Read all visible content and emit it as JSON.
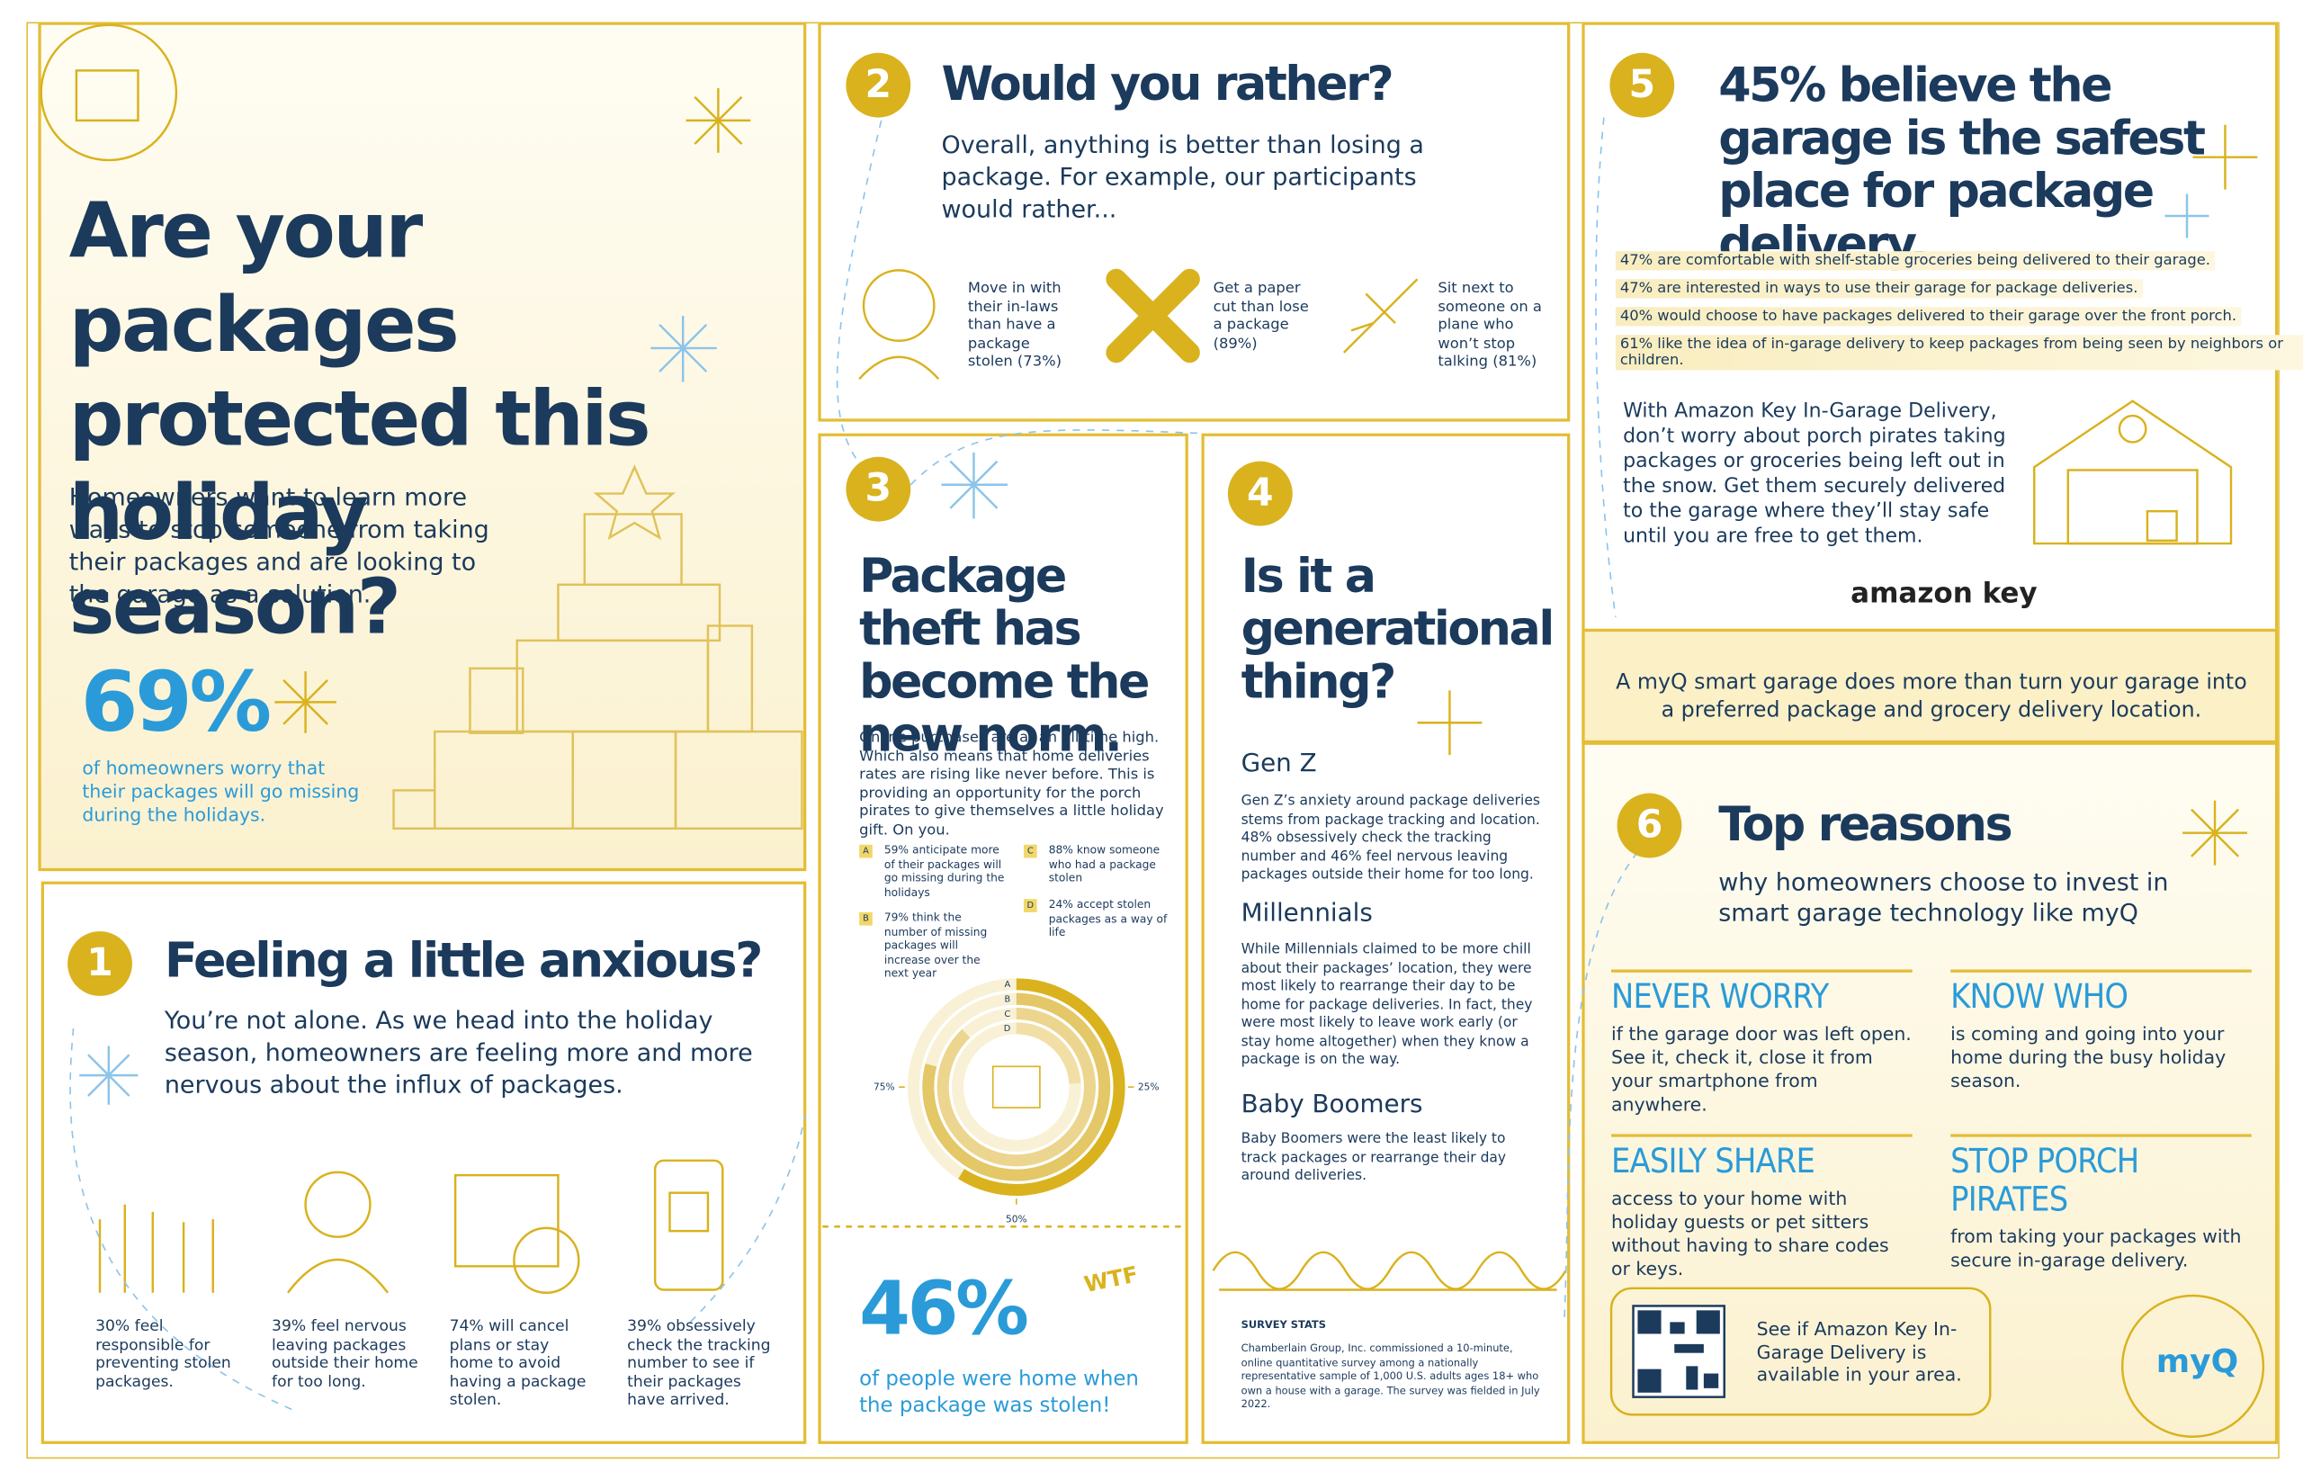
{
  "hero": {
    "title": "Are your packages protected this holiday season?",
    "body": "Homeowners want to learn more ways to stop someone from taking their packages and are looking to the garage as a solution.",
    "stat": "69%",
    "stat_text": "of homeowners worry that their packages will go missing during the holidays."
  },
  "section1": {
    "number": "1",
    "title": "Feeling a little anxious?",
    "body": "You’re not alone. As we head into the holiday season, homeowners are feeling more and more nervous about the influx of packages.",
    "items": [
      "30% feel responsible for preventing stolen packages.",
      "39% feel nervous leaving packages outside their home for too long.",
      "74% will cancel plans or stay home to avoid having a package stolen.",
      "39% obsessively check the tracking number to see if their packages have arrived."
    ]
  },
  "section2": {
    "number": "2",
    "title": "Would you rather?",
    "body": "Overall, anything is better than losing a package. For example, our participants would rather...",
    "items": [
      "Move in with their in-laws than have a package stolen (73%)",
      "Get a paper cut than lose a package (89%)",
      "Sit next to someone on a plane who won’t stop talking (81%)"
    ]
  },
  "section3": {
    "number": "3",
    "title": "Package theft has become the new norm.",
    "body": "Online purchases are at an all-time high. Which also means that home deliveries rates are rising like never before. This is providing an opportunity for the porch pirates to give themselves a little holiday gift. On you.",
    "stats": [
      {
        "letter": "A",
        "text": "59% anticipate more of their packages will go missing during the holidays"
      },
      {
        "letter": "B",
        "text": "79% think the number of missing packages will increase over the next year"
      },
      {
        "letter": "C",
        "text": "88% know someone who had a package stolen"
      },
      {
        "letter": "D",
        "text": "24% accept stolen packages as a way of life"
      }
    ],
    "radial": {
      "type": "radial",
      "categories": [
        "A",
        "B",
        "C",
        "D"
      ],
      "values": [
        59,
        79,
        88,
        24
      ],
      "ticks": [
        {
          "value": 25,
          "label": "25%"
        },
        {
          "value": 50,
          "label": "50%"
        },
        {
          "value": 75,
          "label": "75%"
        }
      ]
    },
    "stat": "46%",
    "stat_text": "of people were home when the package was stolen!",
    "badge": "WTF"
  },
  "section4": {
    "number": "4",
    "title": "Is it a generational thing?",
    "groups": [
      {
        "heading": "Gen Z",
        "text": "Gen Z’s anxiety around package deliveries stems from package tracking and location. 48% obsessively check the tracking number and 46% feel nervous leaving packages outside their home for too long."
      },
      {
        "heading": "Millennials",
        "text": "While Millennials claimed to be more chill about their packages’ location, they were most likely to rearrange their day to be home for package deliveries. In fact, they were most likely to leave work early (or stay home altogether) when they know a package is on the way."
      },
      {
        "heading": "Baby Boomers",
        "text": "Baby Boomers were the least likely to track packages or rearrange their day around deliveries."
      }
    ],
    "survey": {
      "heading": "SURVEY STATS",
      "text": "Chamberlain Group, Inc. commissioned a 10-minute, online quantitative survey among a nationally representative sample of 1,000 U.S. adults ages 18+ who own a house with a garage. The survey was fielded in July 2022."
    }
  },
  "section5": {
    "number": "5",
    "title": "45% believe the garage is the safest place for package delivery.",
    "facts": [
      "47% are comfortable with shelf-stable groceries being delivered to their garage.",
      "47% are interested in ways to use their garage for package deliveries.",
      "40% would choose to have packages delivered to their garage over the front porch.",
      "61% like the idea of in-garage delivery to keep packages from being seen by neighbors or children."
    ],
    "body": "With Amazon Key In-Garage Delivery, don’t worry about porch pirates taking packages or groceries being left out in the snow. Get them securely delivered to the garage where they’ll stay safe until you are free to get them.",
    "logo": "amazon key",
    "banner": "A myQ smart garage does more than turn your garage into a preferred package and grocery delivery location."
  },
  "section6": {
    "number": "6",
    "title": "Top reasons",
    "subtitle": "why homeowners choose to invest in smart garage technology like myQ",
    "reasons": [
      {
        "heading": "NEVER WORRY",
        "text": "if the garage door was left open. See it, check it, close it from your smartphone from anywhere."
      },
      {
        "heading": "KNOW WHO",
        "text": "is coming and going into your home during the busy holiday season."
      },
      {
        "heading": "EASILY SHARE",
        "text": "access to your home with holiday guests or pet sitters without having to share codes or keys."
      },
      {
        "heading": "STOP PORCH PIRATES",
        "text": "from taking your packages with secure in-garage delivery."
      }
    ],
    "qr_text": "See if Amazon Key In-Garage Delivery is available in your area.",
    "logo": "myQ"
  }
}
